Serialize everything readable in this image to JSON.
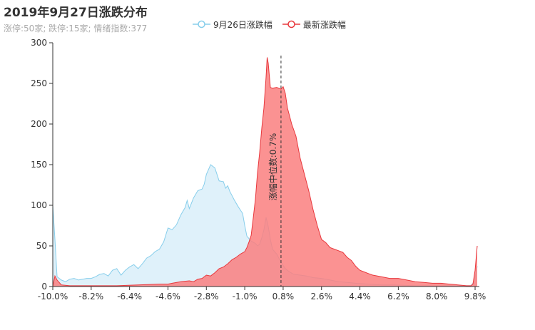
{
  "header": {
    "title": "2019年9月27日涨跌分布",
    "subtitle": "涨停:50家; 跌停:15家; 情绪指数:377"
  },
  "legend": [
    {
      "label": "9月26日涨跌幅",
      "color": "#87ceeb"
    },
    {
      "label": "最新涨跌幅",
      "color": "#e8383d"
    }
  ],
  "chart_data": {
    "type": "area",
    "title": "2019年9月27日涨跌分布",
    "x_ticks": [
      "-10.0%",
      "-8.2%",
      "-6.4%",
      "-4.6%",
      "-2.8%",
      "-1.0%",
      "0.8%",
      "2.6%",
      "4.4%",
      "6.2%",
      "8.0%",
      "9.8%"
    ],
    "y_ticks": [
      "0",
      "50",
      "100",
      "150",
      "200",
      "250",
      "300"
    ],
    "ylim": [
      0,
      300
    ],
    "xlim": [
      -10.0,
      10.0
    ],
    "median_line": {
      "x": 0.7,
      "label": "涨幅中位数:0.7%"
    },
    "series": [
      {
        "name": "9月26日涨跌幅",
        "color": "#87ceeb",
        "fill": "#dff1fa",
        "points": [
          [
            -10.0,
            100
          ],
          [
            -9.9,
            58
          ],
          [
            -9.8,
            12
          ],
          [
            -9.6,
            8
          ],
          [
            -9.4,
            6
          ],
          [
            -9.2,
            9
          ],
          [
            -9.0,
            10
          ],
          [
            -8.8,
            8
          ],
          [
            -8.6,
            9
          ],
          [
            -8.4,
            10
          ],
          [
            -8.2,
            10
          ],
          [
            -8.0,
            12
          ],
          [
            -7.8,
            15
          ],
          [
            -7.6,
            16
          ],
          [
            -7.4,
            13
          ],
          [
            -7.2,
            20
          ],
          [
            -7.0,
            22
          ],
          [
            -6.8,
            14
          ],
          [
            -6.6,
            20
          ],
          [
            -6.4,
            24
          ],
          [
            -6.2,
            27
          ],
          [
            -6.0,
            22
          ],
          [
            -5.8,
            28
          ],
          [
            -5.6,
            35
          ],
          [
            -5.4,
            38
          ],
          [
            -5.2,
            43
          ],
          [
            -5.0,
            46
          ],
          [
            -4.8,
            55
          ],
          [
            -4.6,
            72
          ],
          [
            -4.4,
            70
          ],
          [
            -4.2,
            76
          ],
          [
            -4.0,
            88
          ],
          [
            -3.8,
            97
          ],
          [
            -3.7,
            106
          ],
          [
            -3.6,
            96
          ],
          [
            -3.4,
            109
          ],
          [
            -3.2,
            118
          ],
          [
            -3.0,
            120
          ],
          [
            -2.9,
            126
          ],
          [
            -2.8,
            138
          ],
          [
            -2.6,
            150
          ],
          [
            -2.4,
            146
          ],
          [
            -2.3,
            138
          ],
          [
            -2.2,
            130
          ],
          [
            -2.0,
            129
          ],
          [
            -1.9,
            121
          ],
          [
            -1.8,
            124
          ],
          [
            -1.7,
            117
          ],
          [
            -1.6,
            112
          ],
          [
            -1.5,
            107
          ],
          [
            -1.3,
            98
          ],
          [
            -1.1,
            90
          ],
          [
            -1.0,
            75
          ],
          [
            -0.9,
            62
          ],
          [
            -0.7,
            56
          ],
          [
            -0.5,
            53
          ],
          [
            -0.4,
            50
          ],
          [
            -0.3,
            52
          ],
          [
            -0.2,
            60
          ],
          [
            -0.1,
            70
          ],
          [
            0.0,
            85
          ],
          [
            0.1,
            74
          ],
          [
            0.2,
            58
          ],
          [
            0.3,
            46
          ],
          [
            0.5,
            40
          ],
          [
            0.7,
            30
          ],
          [
            0.9,
            22
          ],
          [
            1.1,
            18
          ],
          [
            1.3,
            15
          ],
          [
            1.6,
            14
          ],
          [
            1.9,
            13
          ],
          [
            2.2,
            11
          ],
          [
            2.6,
            10
          ],
          [
            3.0,
            8
          ],
          [
            3.4,
            6
          ],
          [
            3.8,
            5
          ],
          [
            4.2,
            4
          ],
          [
            4.8,
            3
          ],
          [
            5.4,
            2
          ],
          [
            6.0,
            2
          ],
          [
            7.0,
            1
          ],
          [
            8.0,
            1
          ],
          [
            9.0,
            1
          ],
          [
            9.6,
            1
          ],
          [
            9.7,
            4
          ],
          [
            9.8,
            12
          ],
          [
            9.9,
            25
          ]
        ]
      },
      {
        "name": "最新涨跌幅",
        "color": "#e8383d",
        "fill": "#fa7f7f",
        "points": [
          [
            -10.0,
            0
          ],
          [
            -9.9,
            13
          ],
          [
            -9.8,
            8
          ],
          [
            -9.6,
            2
          ],
          [
            -9.2,
            1
          ],
          [
            -8.0,
            1
          ],
          [
            -7.0,
            1
          ],
          [
            -6.0,
            2
          ],
          [
            -5.0,
            3
          ],
          [
            -4.6,
            3
          ],
          [
            -4.4,
            4
          ],
          [
            -4.0,
            6
          ],
          [
            -3.6,
            7
          ],
          [
            -3.4,
            6
          ],
          [
            -3.2,
            9
          ],
          [
            -3.0,
            10
          ],
          [
            -2.8,
            14
          ],
          [
            -2.6,
            13
          ],
          [
            -2.4,
            17
          ],
          [
            -2.2,
            22
          ],
          [
            -2.0,
            24
          ],
          [
            -1.8,
            28
          ],
          [
            -1.6,
            33
          ],
          [
            -1.4,
            36
          ],
          [
            -1.2,
            40
          ],
          [
            -1.0,
            43
          ],
          [
            -0.9,
            48
          ],
          [
            -0.8,
            55
          ],
          [
            -0.7,
            63
          ],
          [
            -0.6,
            85
          ],
          [
            -0.5,
            108
          ],
          [
            -0.4,
            140
          ],
          [
            -0.3,
            165
          ],
          [
            -0.2,
            195
          ],
          [
            -0.1,
            220
          ],
          [
            0.0,
            258
          ],
          [
            0.05,
            282
          ],
          [
            0.1,
            275
          ],
          [
            0.2,
            245
          ],
          [
            0.3,
            244
          ],
          [
            0.5,
            245
          ],
          [
            0.7,
            243
          ],
          [
            0.8,
            246
          ],
          [
            0.9,
            238
          ],
          [
            1.0,
            220
          ],
          [
            1.2,
            200
          ],
          [
            1.4,
            185
          ],
          [
            1.6,
            158
          ],
          [
            1.8,
            138
          ],
          [
            2.0,
            118
          ],
          [
            2.2,
            95
          ],
          [
            2.4,
            75
          ],
          [
            2.6,
            58
          ],
          [
            2.8,
            54
          ],
          [
            3.0,
            48
          ],
          [
            3.2,
            46
          ],
          [
            3.4,
            44
          ],
          [
            3.6,
            42
          ],
          [
            3.8,
            36
          ],
          [
            4.0,
            32
          ],
          [
            4.2,
            25
          ],
          [
            4.4,
            20
          ],
          [
            4.6,
            18
          ],
          [
            4.8,
            16
          ],
          [
            5.0,
            14
          ],
          [
            5.4,
            12
          ],
          [
            5.8,
            10
          ],
          [
            6.2,
            10
          ],
          [
            6.6,
            8
          ],
          [
            7.0,
            6
          ],
          [
            7.4,
            5
          ],
          [
            7.8,
            4
          ],
          [
            8.2,
            4
          ],
          [
            8.6,
            3
          ],
          [
            9.0,
            2
          ],
          [
            9.4,
            1
          ],
          [
            9.6,
            1
          ],
          [
            9.7,
            3
          ],
          [
            9.8,
            20
          ],
          [
            9.9,
            50
          ]
        ]
      }
    ]
  }
}
